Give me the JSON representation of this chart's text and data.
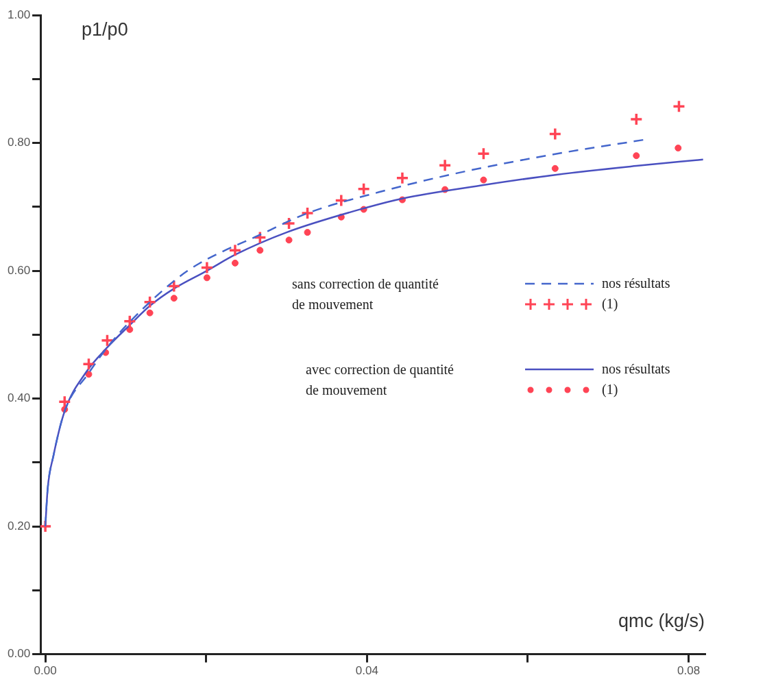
{
  "chart_data": {
    "type": "line",
    "xlabel": "qmc (kg/s)",
    "ylabel": "p1/p0",
    "xlim": [
      -0.0006,
      0.082
    ],
    "ylim": [
      0,
      1
    ],
    "xticks": [
      {
        "value": 0,
        "label": "0.00"
      },
      {
        "value": 0.02,
        "label": null
      },
      {
        "value": 0.04,
        "label": "0.04"
      },
      {
        "value": 0.06,
        "label": null
      },
      {
        "value": 0.08,
        "label": "0.08"
      }
    ],
    "yticks": [
      {
        "value": 0,
        "label": "0.00"
      },
      {
        "value": 0.1,
        "label": null
      },
      {
        "value": 0.2,
        "label": "0.20"
      },
      {
        "value": 0.3,
        "label": null
      },
      {
        "value": 0.4,
        "label": "0.40"
      },
      {
        "value": 0.5,
        "label": null
      },
      {
        "value": 0.6,
        "label": "0.60"
      },
      {
        "value": 0.7,
        "label": null
      },
      {
        "value": 0.8,
        "label": "0.80"
      },
      {
        "value": 0.9,
        "label": null
      },
      {
        "value": 1,
        "label": "1.00"
      }
    ],
    "grid": false,
    "legend": "right",
    "annotations": [
      "sans correction de quantité de mouvement",
      "avec correction de quantité de mouvement"
    ],
    "series": [
      {
        "name": "nos résultats",
        "type": "line",
        "line_style": "dashed",
        "marker": "none",
        "color": "#4466cc",
        "x": [
          0,
          0.0003,
          0.001,
          0.0024,
          0.0054,
          0.0077,
          0.0105,
          0.0163,
          0.0191,
          0.027,
          0.0326,
          0.0415,
          0.0506,
          0.0627,
          0.0745
        ],
        "values": [
          0.2,
          0.26,
          0.31,
          0.38,
          0.44,
          0.48,
          0.52,
          0.587,
          0.611,
          0.658,
          0.69,
          0.723,
          0.751,
          0.781,
          0.805
        ]
      },
      {
        "name": "(1)",
        "type": "scatter",
        "marker": "cross",
        "color": "#ff4455",
        "x": [
          0,
          0.0024,
          0.0054,
          0.0077,
          0.0105,
          0.013,
          0.016,
          0.0201,
          0.0236,
          0.0267,
          0.0303,
          0.0326,
          0.0368,
          0.0396,
          0.0444,
          0.0497,
          0.0545,
          0.0634,
          0.0735,
          0.0788
        ],
        "values": [
          0.2,
          0.395,
          0.454,
          0.491,
          0.521,
          0.551,
          0.576,
          0.605,
          0.632,
          0.652,
          0.674,
          0.69,
          0.71,
          0.728,
          0.745,
          0.765,
          0.783,
          0.814,
          0.837,
          0.857
        ]
      },
      {
        "name": "nos résultats",
        "type": "line",
        "line_style": "solid",
        "marker": "none",
        "color": "#4a50c0",
        "x": [
          0,
          0.0003,
          0.001,
          0.0024,
          0.005,
          0.0077,
          0.0105,
          0.013,
          0.016,
          0.0201,
          0.0236,
          0.03,
          0.04,
          0.0444,
          0.0545,
          0.0634,
          0.0735,
          0.0818
        ],
        "values": [
          0.2,
          0.26,
          0.31,
          0.38,
          0.44,
          0.48,
          0.515,
          0.545,
          0.572,
          0.6,
          0.625,
          0.66,
          0.699,
          0.713,
          0.734,
          0.75,
          0.764,
          0.774
        ]
      },
      {
        "name": "(1)",
        "type": "scatter",
        "marker": "circle",
        "color": "#ff4455",
        "x": [
          0.0024,
          0.0054,
          0.0075,
          0.0105,
          0.013,
          0.016,
          0.0201,
          0.0236,
          0.0267,
          0.0303,
          0.0326,
          0.0368,
          0.0396,
          0.0444,
          0.0497,
          0.0545,
          0.0634,
          0.0735,
          0.0787
        ],
        "values": [
          0.383,
          0.438,
          0.472,
          0.508,
          0.534,
          0.557,
          0.589,
          0.612,
          0.632,
          0.648,
          0.66,
          0.684,
          0.696,
          0.711,
          0.727,
          0.742,
          0.76,
          0.78,
          0.792
        ]
      }
    ]
  }
}
